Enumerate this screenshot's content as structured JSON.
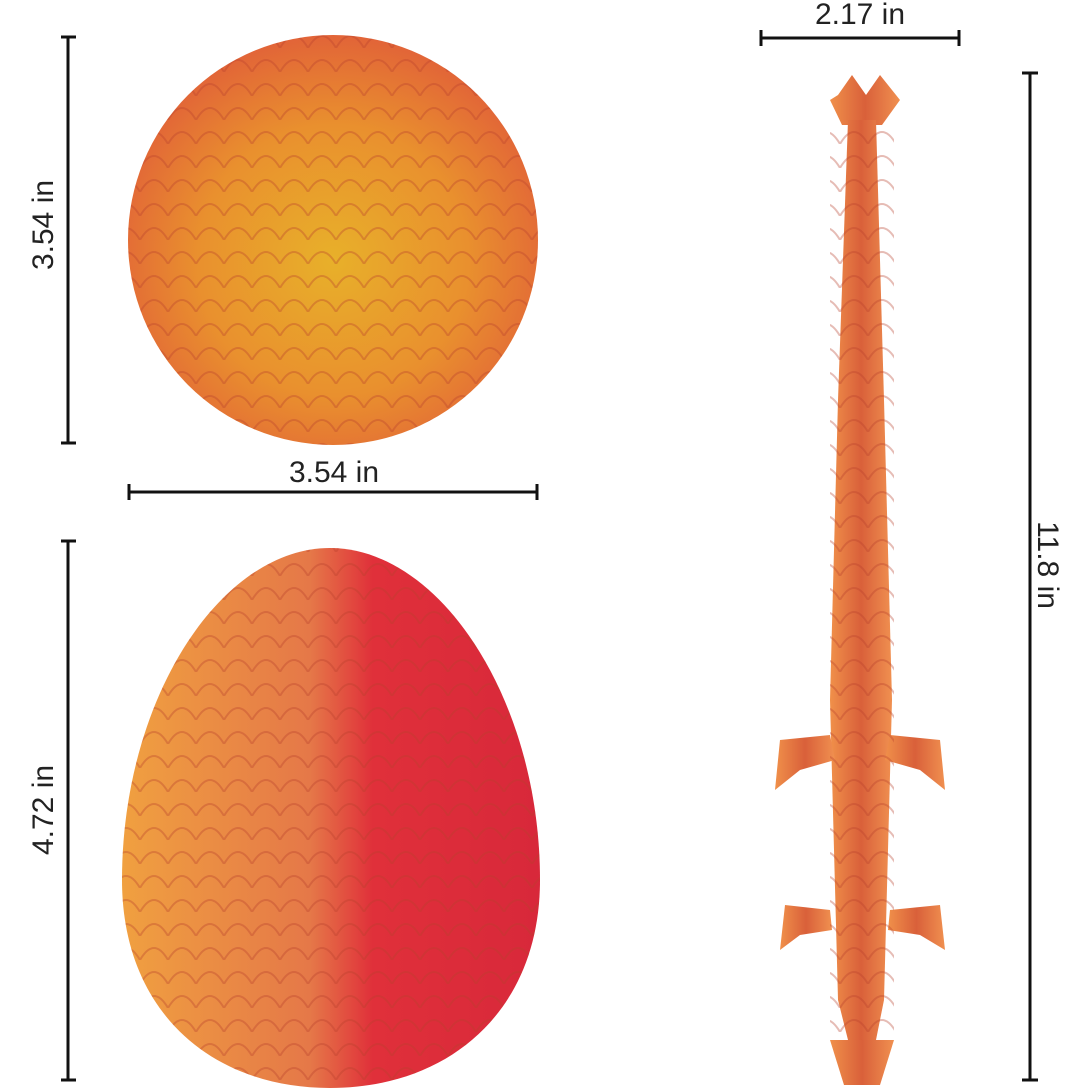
{
  "dimensions": {
    "sphere_height": "3.54 in",
    "sphere_width": "3.54 in",
    "egg_height": "4.72 in",
    "dragon_width": "2.17 in",
    "dragon_length": "11.8 in"
  }
}
